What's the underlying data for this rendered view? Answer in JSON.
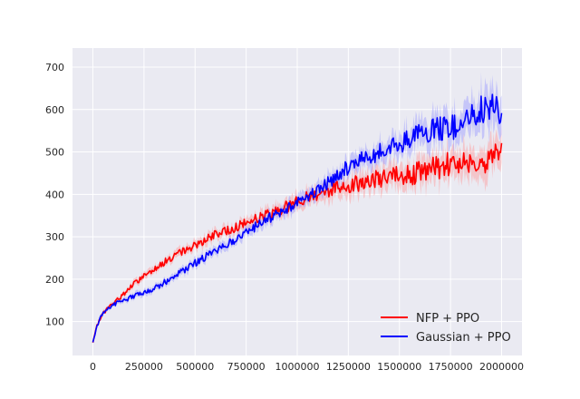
{
  "chart_data": {
    "type": "line",
    "title": "",
    "xlabel": "",
    "ylabel": "",
    "xlim": [
      -100000,
      2100000
    ],
    "ylim": [
      20,
      745
    ],
    "x_ticks": [
      0,
      250000,
      500000,
      750000,
      1000000,
      1250000,
      1500000,
      1750000,
      2000000
    ],
    "x_tick_labels": [
      "0",
      "250000",
      "500000",
      "750000",
      "1000000",
      "1250000",
      "1500000",
      "1750000",
      "2000000"
    ],
    "y_ticks": [
      100,
      200,
      300,
      400,
      500,
      600,
      700
    ],
    "y_tick_labels": [
      "100",
      "200",
      "300",
      "400",
      "500",
      "600",
      "700"
    ],
    "grid": true,
    "legend_position": "lower-right",
    "series": [
      {
        "name": "NFP + PPO",
        "color": "#ff0000",
        "band_color": "#ff9999",
        "x": [
          0,
          20000,
          40000,
          60000,
          80000,
          100000,
          150000,
          200000,
          250000,
          300000,
          350000,
          400000,
          450000,
          500000,
          550000,
          600000,
          650000,
          700000,
          750000,
          800000,
          850000,
          900000,
          950000,
          1000000,
          1050000,
          1100000,
          1150000,
          1200000,
          1250000,
          1300000,
          1350000,
          1400000,
          1450000,
          1500000,
          1550000,
          1600000,
          1650000,
          1700000,
          1750000,
          1800000,
          1850000,
          1900000,
          1950000,
          2000000
        ],
        "y": [
          50,
          90,
          112,
          125,
          135,
          142,
          165,
          188,
          208,
          225,
          240,
          255,
          268,
          280,
          293,
          305,
          313,
          323,
          333,
          343,
          352,
          362,
          372,
          382,
          392,
          402,
          410,
          418,
          422,
          427,
          432,
          437,
          440,
          442,
          446,
          452,
          458,
          465,
          473,
          478,
          480,
          480,
          486,
          490
        ],
        "spread": [
          2,
          3,
          4,
          5,
          5,
          5,
          6,
          7,
          8,
          8,
          9,
          9,
          10,
          10,
          11,
          11,
          12,
          12,
          13,
          13,
          14,
          15,
          16,
          17,
          18,
          19,
          20,
          21,
          22,
          23,
          24,
          25,
          26,
          27,
          28,
          29,
          30,
          31,
          32,
          33,
          34,
          35,
          36,
          36
        ]
      },
      {
        "name": "Gaussian + PPO",
        "color": "#0000ff",
        "band_color": "#9999ff",
        "x": [
          0,
          20000,
          40000,
          60000,
          80000,
          100000,
          150000,
          200000,
          250000,
          300000,
          350000,
          400000,
          450000,
          500000,
          550000,
          600000,
          650000,
          700000,
          750000,
          800000,
          850000,
          900000,
          950000,
          1000000,
          1050000,
          1100000,
          1150000,
          1200000,
          1250000,
          1300000,
          1350000,
          1400000,
          1450000,
          1500000,
          1550000,
          1600000,
          1650000,
          1700000,
          1750000,
          1800000,
          1850000,
          1900000,
          1950000,
          2000000
        ],
        "y": [
          50,
          90,
          112,
          125,
          134,
          140,
          150,
          160,
          168,
          178,
          192,
          208,
          222,
          238,
          252,
          265,
          280,
          295,
          310,
          325,
          340,
          355,
          368,
          380,
          395,
          412,
          428,
          445,
          465,
          478,
          488,
          498,
          508,
          520,
          530,
          540,
          548,
          553,
          558,
          568,
          580,
          595,
          605,
          600
        ],
        "spread": [
          2,
          3,
          4,
          5,
          5,
          5,
          6,
          6,
          7,
          7,
          8,
          8,
          9,
          9,
          10,
          10,
          11,
          11,
          12,
          12,
          13,
          13,
          14,
          15,
          16,
          17,
          18,
          19,
          20,
          21,
          22,
          23,
          24,
          25,
          27,
          29,
          31,
          33,
          35,
          37,
          39,
          41,
          43,
          45
        ]
      }
    ]
  }
}
